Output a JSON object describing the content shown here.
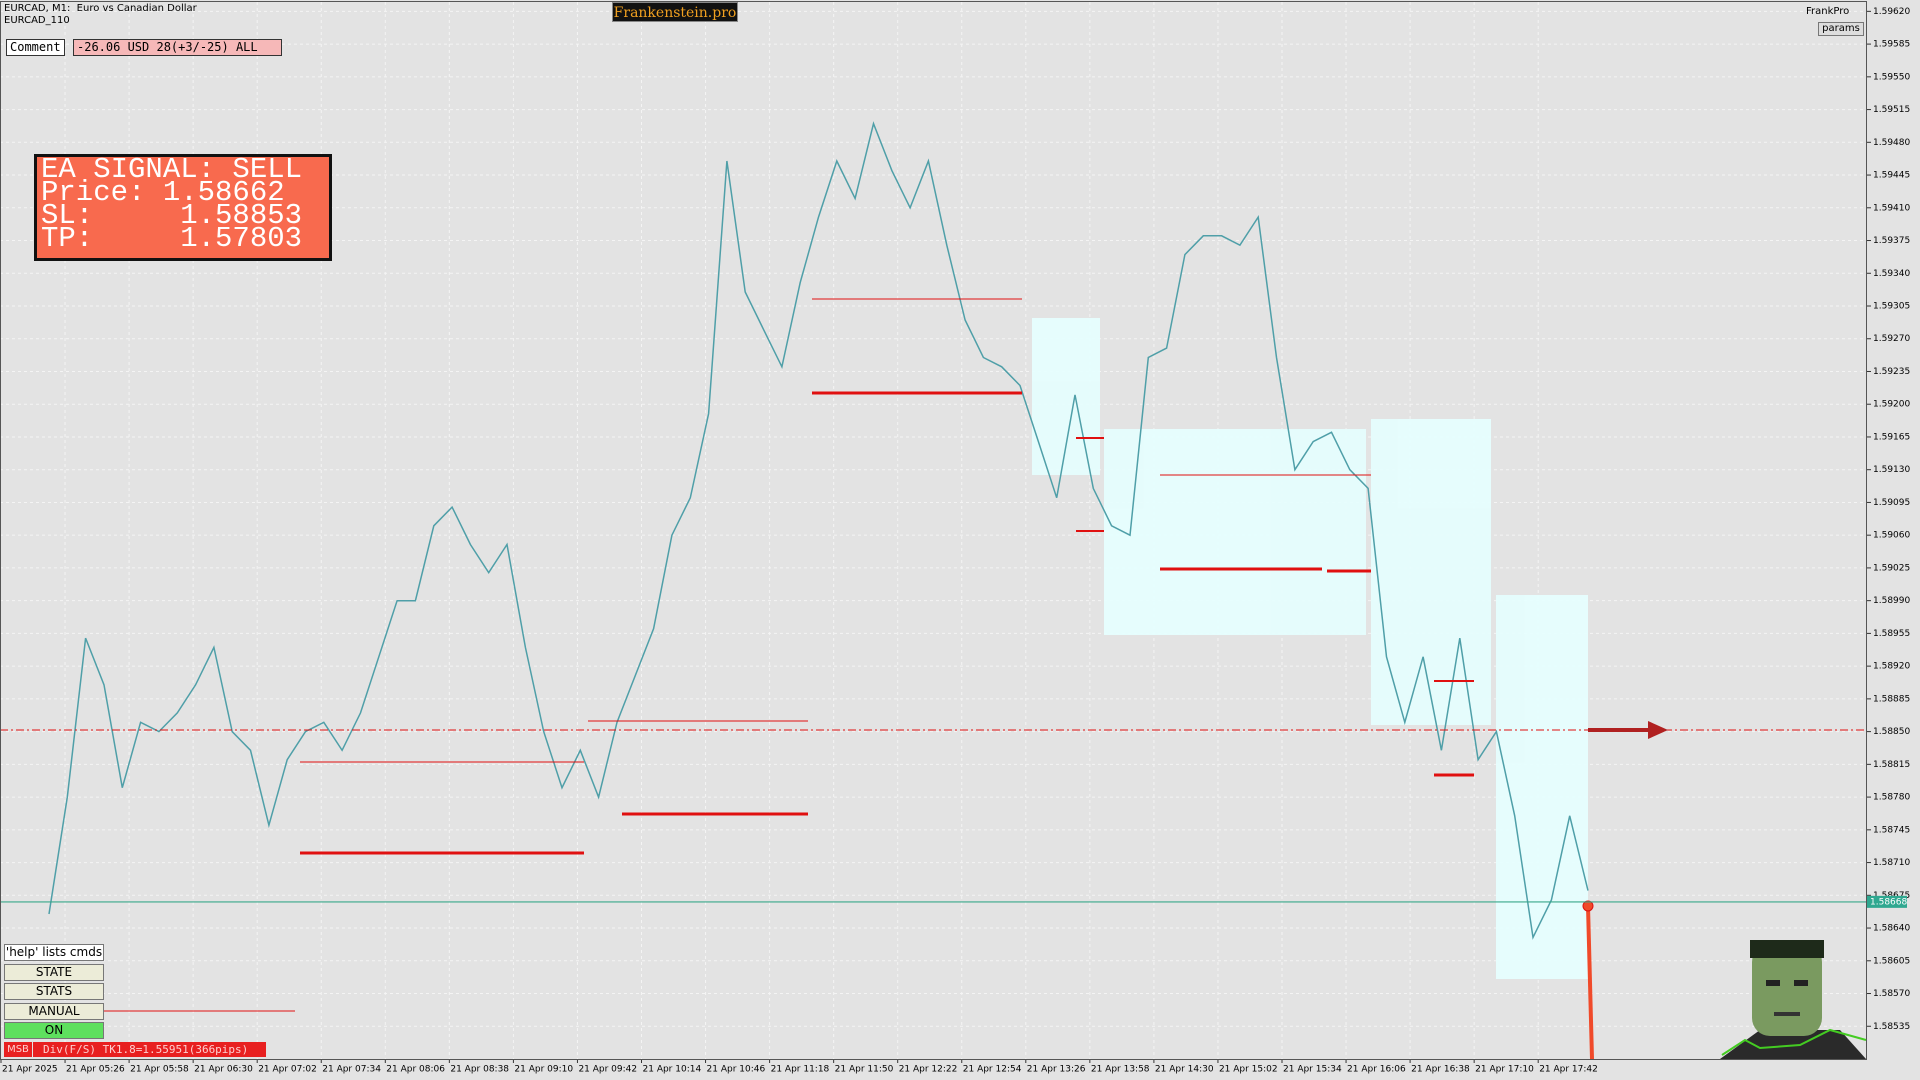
{
  "header": {
    "symbol": "EURCAD, M1:  Euro vs Canadian Dollar",
    "template": "EURCAD_110",
    "brand": "Frankenstein.pro",
    "user": "FrankPro",
    "params_button": "params"
  },
  "comment": {
    "label": "Comment",
    "value": "-26.06 USD 28(+3/-25) ALL"
  },
  "signal": {
    "lines": [
      "EA SIGNAL: SELL",
      "Price: 1.58662",
      "SL:     1.58853",
      "TP:     1.57803"
    ]
  },
  "buttons": [
    "'help' lists cmds",
    "STATE",
    "STATS",
    "MANUAL",
    "ON"
  ],
  "status": {
    "tag": "MSB",
    "text": "Div(F/S) TK1.8=1.55951(366pips)"
  },
  "chart_data": {
    "type": "line",
    "color": "#4f9fa8",
    "grid": true,
    "time_labels": [
      "21 Apr 2025",
      "21 Apr 05:26",
      "21 Apr 05:58",
      "21 Apr 06:30",
      "21 Apr 07:02",
      "21 Apr 07:34",
      "21 Apr 08:06",
      "21 Apr 08:38",
      "21 Apr 09:10",
      "21 Apr 09:42",
      "21 Apr 10:14",
      "21 Apr 10:46",
      "21 Apr 11:18",
      "21 Apr 11:50",
      "21 Apr 12:22",
      "21 Apr 12:54",
      "21 Apr 13:26",
      "21 Apr 13:58",
      "21 Apr 14:30",
      "21 Apr 15:02",
      "21 Apr 15:34",
      "21 Apr 16:06",
      "21 Apr 16:38",
      "21 Apr 17:10",
      "21 Apr 17:42"
    ],
    "values": [
      1.58655,
      1.5878,
      1.5895,
      1.589,
      1.5879,
      1.5886,
      1.5885,
      1.5887,
      1.589,
      1.5894,
      1.5885,
      1.5883,
      1.5875,
      1.5882,
      1.5885,
      1.5886,
      1.5883,
      1.5887,
      1.5893,
      1.5899,
      1.5899,
      1.5907,
      1.5909,
      1.5905,
      1.5902,
      1.5905,
      1.5894,
      1.5885,
      1.5879,
      1.5883,
      1.5878,
      1.5886,
      1.5891,
      1.5896,
      1.5906,
      1.591,
      1.5919,
      1.5946,
      1.5932,
      1.5928,
      1.5924,
      1.5933,
      1.594,
      1.5946,
      1.5942,
      1.595,
      1.5945,
      1.5941,
      1.5946,
      1.5937,
      1.5929,
      1.5925,
      1.5924,
      1.5922,
      1.5916,
      1.591,
      1.5921,
      1.5911,
      1.5907,
      1.5906,
      1.5925,
      1.5926,
      1.5936,
      1.5938,
      1.5938,
      1.5937,
      1.594,
      1.5925,
      1.5913,
      1.5916,
      1.5917,
      1.5913,
      1.5911,
      1.5893,
      1.5886,
      1.5893,
      1.5883,
      1.5895,
      1.5882,
      1.5885,
      1.5876,
      1.5863,
      1.5867,
      1.5876,
      1.5868
    ],
    "ylim": [
      1.585,
      1.5963
    ],
    "yticks": [
      {
        "value": 1.5962,
        "label": "1.59620"
      },
      {
        "value": 1.59585,
        "label": "1.59585"
      },
      {
        "value": 1.5955,
        "label": "1.59550"
      },
      {
        "value": 1.59515,
        "label": "1.59515"
      },
      {
        "value": 1.5948,
        "label": "1.59480"
      },
      {
        "value": 1.59445,
        "label": "1.59445"
      },
      {
        "value": 1.5941,
        "label": "1.59410"
      },
      {
        "value": 1.59375,
        "label": "1.59375"
      },
      {
        "value": 1.5934,
        "label": "1.59340"
      },
      {
        "value": 1.59305,
        "label": "1.59305"
      },
      {
        "value": 1.5927,
        "label": "1.59270"
      },
      {
        "value": 1.59235,
        "label": "1.59235"
      },
      {
        "value": 1.592,
        "label": "1.59200"
      },
      {
        "value": 1.59165,
        "label": "1.59165"
      },
      {
        "value": 1.5913,
        "label": "1.59130"
      },
      {
        "value": 1.59095,
        "label": "1.59095"
      },
      {
        "value": 1.5906,
        "label": "1.59060"
      },
      {
        "value": 1.59025,
        "label": "1.59025"
      },
      {
        "value": 1.5899,
        "label": "1.58990"
      },
      {
        "value": 1.58955,
        "label": "1.58955"
      },
      {
        "value": 1.5892,
        "label": "1.58920"
      },
      {
        "value": 1.58885,
        "label": "1.58885"
      },
      {
        "value": 1.5885,
        "label": "1.58850"
      },
      {
        "value": 1.58815,
        "label": "1.58815"
      },
      {
        "value": 1.5878,
        "label": "1.58780"
      },
      {
        "value": 1.58745,
        "label": "1.58745"
      },
      {
        "value": 1.5871,
        "label": "1.58710"
      },
      {
        "value": 1.58675,
        "label": "1.58675"
      },
      {
        "value": 1.5864,
        "label": "1.58640"
      },
      {
        "value": 1.58605,
        "label": "1.58605"
      },
      {
        "value": 1.5857,
        "label": "1.58570"
      },
      {
        "value": 1.58535,
        "label": "1.58535"
      }
    ],
    "current_price": {
      "value": 1.58668,
      "label": "1.58668"
    }
  }
}
